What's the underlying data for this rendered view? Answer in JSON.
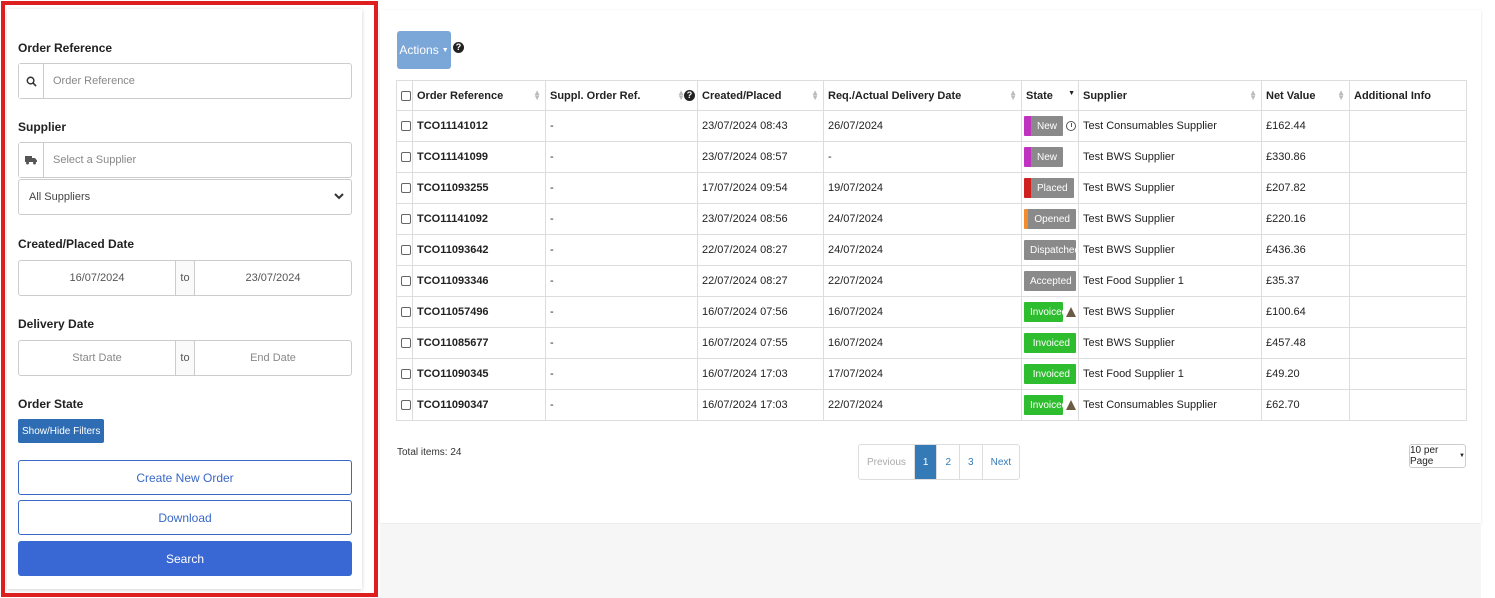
{
  "filters": {
    "order_reference": {
      "label": "Order Reference",
      "placeholder": "Order Reference",
      "icon": "search-icon"
    },
    "supplier": {
      "label": "Supplier",
      "placeholder": "Select a Supplier",
      "icon": "truck-icon",
      "select_value": "All Suppliers"
    },
    "created_date": {
      "label": "Created/Placed Date",
      "from": "16/07/2024",
      "to_label": "to",
      "to": "23/07/2024"
    },
    "delivery_date": {
      "label": "Delivery Date",
      "from_placeholder": "Start Date",
      "to_label": "to",
      "to_placeholder": "End Date"
    },
    "order_state": {
      "label": "Order State",
      "toggle_label": "Show/Hide Filters"
    },
    "create_button": "Create New Order",
    "download_button": "Download",
    "search_button": "Search"
  },
  "toolbar": {
    "actions_label": "Actions"
  },
  "table": {
    "headers": [
      "Order Reference",
      "Suppl. Order Ref.",
      "Created/Placed",
      "Req./Actual Delivery Date",
      "State",
      "Supplier",
      "Net Value",
      "Additional Info"
    ],
    "rows": [
      {
        "ref": "TCO11141012",
        "suppl_ref": "-",
        "created": "23/07/2024 08:43",
        "delivery": "26/07/2024",
        "state": "New",
        "flag": "clock",
        "supplier": "Test Consumables Supplier",
        "net": "£162.44",
        "info": ""
      },
      {
        "ref": "TCO11141099",
        "suppl_ref": "-",
        "created": "23/07/2024 08:57",
        "delivery": "-",
        "state": "New",
        "flag": "",
        "supplier": "Test BWS Supplier",
        "net": "£330.86",
        "info": ""
      },
      {
        "ref": "TCO11093255",
        "suppl_ref": "-",
        "created": "17/07/2024 09:54",
        "delivery": "19/07/2024",
        "state": "Placed",
        "flag": "",
        "supplier": "Test BWS Supplier",
        "net": "£207.82",
        "info": ""
      },
      {
        "ref": "TCO11141092",
        "suppl_ref": "-",
        "created": "23/07/2024 08:56",
        "delivery": "24/07/2024",
        "state": "Opened",
        "flag": "",
        "supplier": "Test BWS Supplier",
        "net": "£220.16",
        "info": ""
      },
      {
        "ref": "TCO11093642",
        "suppl_ref": "-",
        "created": "22/07/2024 08:27",
        "delivery": "24/07/2024",
        "state": "Dispatched",
        "flag": "",
        "supplier": "Test BWS Supplier",
        "net": "£436.36",
        "info": ""
      },
      {
        "ref": "TCO11093346",
        "suppl_ref": "-",
        "created": "22/07/2024 08:27",
        "delivery": "22/07/2024",
        "state": "Accepted",
        "flag": "",
        "supplier": "Test Food Supplier 1",
        "net": "£35.37",
        "info": ""
      },
      {
        "ref": "TCO11057496",
        "suppl_ref": "-",
        "created": "16/07/2024 07:56",
        "delivery": "16/07/2024",
        "state": "Invoiced",
        "flag": "warning",
        "supplier": "Test BWS Supplier",
        "net": "£100.64",
        "info": ""
      },
      {
        "ref": "TCO11085677",
        "suppl_ref": "-",
        "created": "16/07/2024 07:55",
        "delivery": "16/07/2024",
        "state": "Invoiced",
        "flag": "",
        "supplier": "Test BWS Supplier",
        "net": "£457.48",
        "info": ""
      },
      {
        "ref": "TCO11090345",
        "suppl_ref": "-",
        "created": "16/07/2024 17:03",
        "delivery": "17/07/2024",
        "state": "Invoiced",
        "flag": "",
        "supplier": "Test Food Supplier 1",
        "net": "£49.20",
        "info": ""
      },
      {
        "ref": "TCO11090347",
        "suppl_ref": "-",
        "created": "16/07/2024 17:03",
        "delivery": "22/07/2024",
        "state": "Invoiced",
        "flag": "warning",
        "supplier": "Test Consumables Supplier",
        "net": "£62.70",
        "info": ""
      }
    ]
  },
  "state_colors": {
    "New": {
      "stripe": "#c032c0",
      "body": "#8a8a8a"
    },
    "Placed": {
      "stripe": "#d02020",
      "body": "#8a8a8a"
    },
    "Opened": {
      "stripe": "#f28a2e",
      "body": "#8a8a8a"
    },
    "Dispatched": {
      "stripe": "#c9c02e",
      "body": "#8a8a8a"
    },
    "Accepted": {
      "stripe": "#9be22c",
      "body": "#8a8a8a"
    },
    "Invoiced": {
      "stripe": "#2ebd2e",
      "body": "#2ebd2e"
    }
  },
  "footer": {
    "total_items": "Total items: 24",
    "pagination": {
      "previous": "Previous",
      "pages": [
        "1",
        "2",
        "3"
      ],
      "current": "1",
      "next": "Next"
    },
    "per_page": "10 per Page"
  },
  "colors": {
    "highlight_border": "#dd1f1f",
    "primary": "#3968d4",
    "actions": "#7ba6d8"
  }
}
